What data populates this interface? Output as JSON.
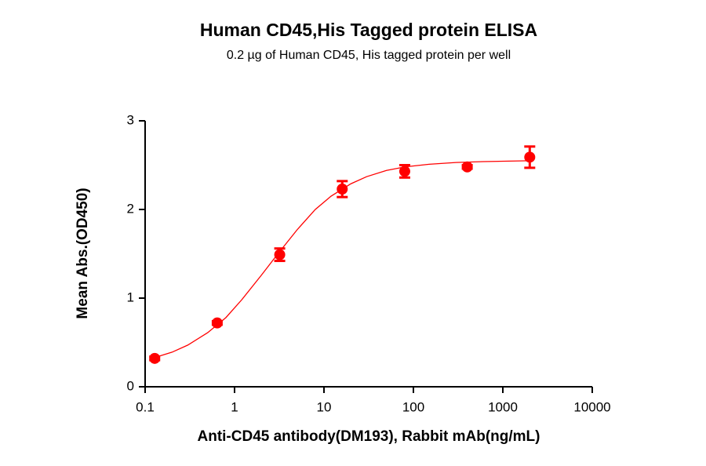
{
  "chart_data": {
    "type": "scatter",
    "title": "Human CD45,His Tagged protein ELISA",
    "subtitle": "0.2 µg of Human CD45, His tagged protein per well",
    "x_label": "Anti-CD45 antibody(DM193), Rabbit mAb(ng/mL)",
    "y_label": "Mean Abs.(OD450)",
    "x_scale": "log",
    "xlim": [
      0.1,
      10000
    ],
    "xticks": [
      0.1,
      1,
      10,
      100,
      1000,
      10000
    ],
    "ylim": [
      0,
      3
    ],
    "yticks": [
      0,
      1,
      2,
      3
    ],
    "series": [
      {
        "color": "#ff0000",
        "x": [
          0.128,
          0.64,
          3.2,
          16,
          80,
          400,
          2000
        ],
        "values": [
          0.32,
          0.72,
          1.49,
          2.23,
          2.43,
          2.48,
          2.59
        ],
        "errors": [
          0.02,
          0.02,
          0.07,
          0.09,
          0.07,
          0.02,
          0.12
        ]
      }
    ],
    "fit": {
      "color": "#ff0000",
      "x": [
        0.128,
        0.2,
        0.3,
        0.5,
        0.8,
        1.2,
        2,
        3,
        5,
        8,
        12,
        20,
        30,
        50,
        80,
        150,
        300,
        600,
        2000
      ],
      "values": [
        0.33,
        0.39,
        0.47,
        0.61,
        0.78,
        0.98,
        1.26,
        1.49,
        1.77,
        2.0,
        2.15,
        2.29,
        2.37,
        2.44,
        2.48,
        2.51,
        2.53,
        2.54,
        2.55
      ]
    }
  }
}
